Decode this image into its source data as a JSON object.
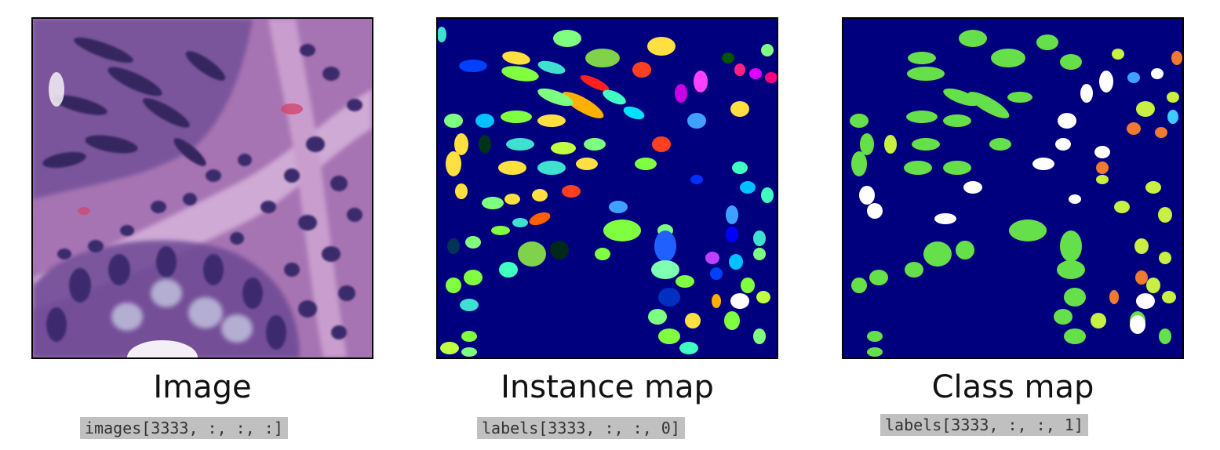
{
  "panels": [
    {
      "title": "Image",
      "code": "images[3333, :, :, :]"
    },
    {
      "title": "Instance map",
      "code": "labels[3333, :, :, 0]"
    },
    {
      "title": "Class map",
      "code": "labels[3333, :, :, 1]"
    }
  ],
  "colors": {
    "tissue_background": "#b07ab8",
    "stroma_light": "#d8b5da",
    "nucleus_dark": "#3d2a6e",
    "map_background": "#00007f",
    "class_epithelial": "#66e04a",
    "class_inflammatory": "#ffffff",
    "class_connective": "#c8f040",
    "class_other": "#f07a30"
  },
  "icons": [
    "he-histology-image",
    "instance-segmentation-map",
    "class-segmentation-map"
  ]
}
